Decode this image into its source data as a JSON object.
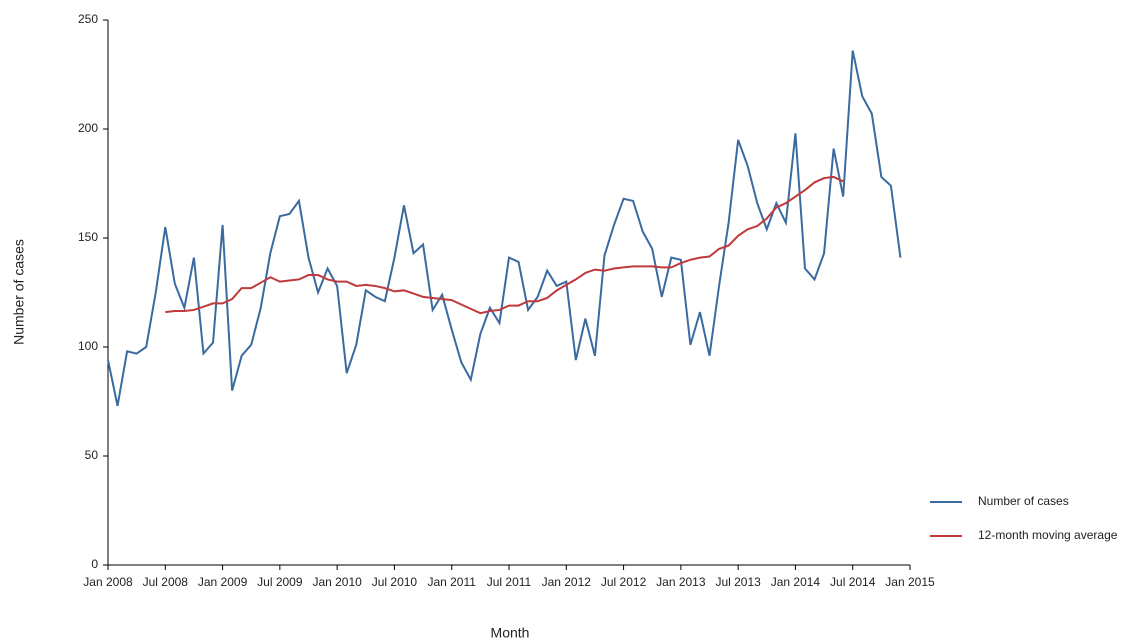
{
  "chart_data": {
    "type": "line",
    "x_label": "Month",
    "y_label": "Number of cases",
    "x": [
      "Jan 2008",
      "Feb 2008",
      "Mar 2008",
      "Apr 2008",
      "May 2008",
      "Jun 2008",
      "Jul 2008",
      "Aug 2008",
      "Sep 2008",
      "Oct 2008",
      "Nov 2008",
      "Dec 2008",
      "Jan 2009",
      "Feb 2009",
      "Mar 2009",
      "Apr 2009",
      "May 2009",
      "Jun 2009",
      "Jul 2009",
      "Aug 2009",
      "Sep 2009",
      "Oct 2009",
      "Nov 2009",
      "Dec 2009",
      "Jan 2010",
      "Feb 2010",
      "Mar 2010",
      "Apr 2010",
      "May 2010",
      "Jun 2010",
      "Jul 2010",
      "Aug 2010",
      "Sep 2010",
      "Oct 2010",
      "Nov 2010",
      "Dec 2010",
      "Jan 2011",
      "Feb 2011",
      "Mar 2011",
      "Apr 2011",
      "May 2011",
      "Jun 2011",
      "Jul 2011",
      "Aug 2011",
      "Sep 2011",
      "Oct 2011",
      "Nov 2011",
      "Dec 2011",
      "Jan 2012",
      "Feb 2012",
      "Mar 2012",
      "Apr 2012",
      "May 2012",
      "Jun 2012",
      "Jul 2012",
      "Aug 2012",
      "Sep 2012",
      "Oct 2012",
      "Nov 2012",
      "Dec 2012",
      "Jan 2013",
      "Feb 2013",
      "Mar 2013",
      "Apr 2013",
      "May 2013",
      "Jun 2013",
      "Jul 2013",
      "Aug 2013",
      "Sep 2013",
      "Oct 2013",
      "Nov 2013",
      "Dec 2013",
      "Jan 2014",
      "Feb 2014",
      "Mar 2014",
      "Apr 2014",
      "May 2014",
      "Jun 2014",
      "Jul 2014",
      "Aug 2014",
      "Sep 2014",
      "Oct 2014",
      "Nov 2014",
      "Dec 2014"
    ],
    "series": [
      {
        "name": "Number of cases",
        "color": "#3a6aa0",
        "values": [
          94,
          73,
          98,
          97,
          100,
          125,
          155,
          129,
          118,
          141,
          97,
          102,
          156,
          80,
          96,
          101,
          118,
          143,
          160,
          161,
          167,
          141,
          125,
          136,
          128,
          88,
          101,
          126,
          123,
          121,
          141,
          165,
          143,
          147,
          117,
          124,
          108,
          93,
          85,
          106,
          118,
          111,
          141,
          139,
          117,
          123,
          135,
          128,
          130,
          94,
          113,
          96,
          142,
          156,
          168,
          167,
          153,
          145,
          123,
          141,
          140,
          101,
          116,
          96,
          128,
          157,
          195,
          183,
          166,
          154,
          166,
          157,
          198,
          136,
          131,
          143,
          191,
          169,
          236,
          215,
          207,
          178,
          174,
          141
        ]
      },
      {
        "name": "12-month moving average",
        "color": "#c0393b",
        "values": [
          null,
          null,
          null,
          null,
          null,
          null,
          116,
          116.5,
          116.5,
          117,
          118.5,
          120,
          120,
          122,
          127,
          127,
          129.5,
          132,
          130,
          130.5,
          131,
          133,
          133,
          131,
          130,
          130,
          128,
          128.5,
          128,
          127,
          125.5,
          126,
          124.5,
          123,
          122.5,
          122,
          121.5,
          119.5,
          117.5,
          115.5,
          116.5,
          117,
          119,
          119,
          121,
          121,
          122.5,
          126,
          128.5,
          131,
          134,
          135.5,
          135,
          136,
          136.5,
          137,
          137,
          137,
          136.5,
          136.5,
          138.5,
          140,
          141,
          141.5,
          145,
          146.5,
          151,
          154,
          155.5,
          159,
          164,
          166,
          169,
          172,
          175.5,
          177.5,
          178,
          176,
          null,
          null,
          null,
          null,
          null,
          null
        ]
      }
    ],
    "xlim": [
      "Jan 2008",
      "Jan 2015"
    ],
    "xticks": [
      "Jan 2008",
      "Jul 2008",
      "Jan 2009",
      "Jul 2009",
      "Jan 2010",
      "Jul 2010",
      "Jan 2011",
      "Jul 2011",
      "Jan 2012",
      "Jul 2012",
      "Jan 2013",
      "Jul 2013",
      "Jan 2014",
      "Jul 2014",
      "Jan 2015"
    ],
    "ylim": [
      0,
      250
    ],
    "yticks": [
      0,
      50,
      100,
      150,
      200,
      250
    ],
    "legend": "right"
  }
}
